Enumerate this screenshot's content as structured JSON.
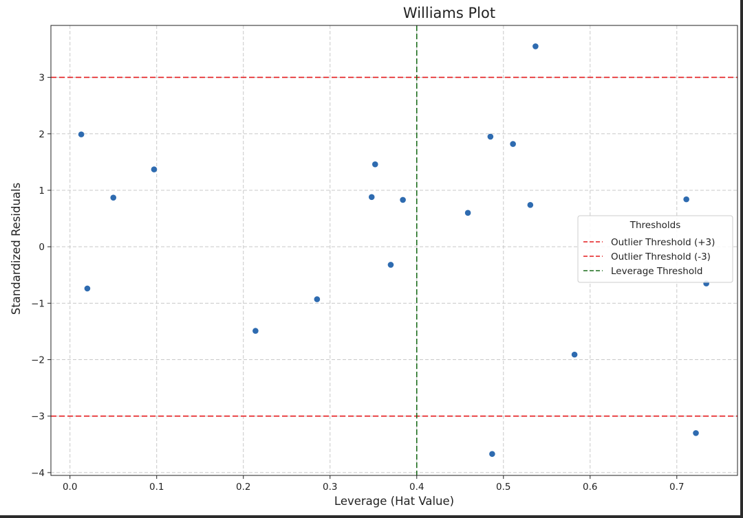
{
  "chart_data": {
    "type": "scatter",
    "title": "Williams Plot",
    "xlabel": "Leverage (Hat Value)",
    "ylabel": "Standardized Residuals",
    "xlim": [
      -0.022,
      0.77
    ],
    "ylim": [
      -4.05,
      3.92
    ],
    "xticks": [
      0.0,
      0.1,
      0.2,
      0.3,
      0.4,
      0.5,
      0.6,
      0.7
    ],
    "xtick_labels": [
      "0.0",
      "0.1",
      "0.2",
      "0.3",
      "0.4",
      "0.5",
      "0.6",
      "0.7"
    ],
    "yticks": [
      -4,
      -3,
      -2,
      -1,
      0,
      1,
      2,
      3
    ],
    "ytick_labels": [
      "−4",
      "−3",
      "−2",
      "−1",
      "0",
      "1",
      "2",
      "3"
    ],
    "grid": true,
    "point_color": "#2e6bb0",
    "points": [
      {
        "x": 0.013,
        "y": 1.99
      },
      {
        "x": 0.02,
        "y": -0.74
      },
      {
        "x": 0.05,
        "y": 0.87
      },
      {
        "x": 0.097,
        "y": 1.37
      },
      {
        "x": 0.214,
        "y": -1.49
      },
      {
        "x": 0.285,
        "y": -0.93
      },
      {
        "x": 0.348,
        "y": 0.88
      },
      {
        "x": 0.352,
        "y": 1.46
      },
      {
        "x": 0.37,
        "y": -0.32
      },
      {
        "x": 0.384,
        "y": 0.83
      },
      {
        "x": 0.459,
        "y": 0.6
      },
      {
        "x": 0.485,
        "y": 1.95
      },
      {
        "x": 0.487,
        "y": -3.67
      },
      {
        "x": 0.511,
        "y": 1.82
      },
      {
        "x": 0.531,
        "y": 0.74
      },
      {
        "x": 0.537,
        "y": 3.55
      },
      {
        "x": 0.582,
        "y": -1.91
      },
      {
        "x": 0.711,
        "y": 0.84
      },
      {
        "x": 0.722,
        "y": -3.3
      },
      {
        "x": 0.734,
        "y": -0.65
      }
    ],
    "thresholds": [
      {
        "label": "Outlier Threshold (+3)",
        "orientation": "horizontal",
        "value": 3,
        "color": "#e41a1c"
      },
      {
        "label": "Outlier Threshold (-3)",
        "orientation": "horizontal",
        "value": -3,
        "color": "#e41a1c"
      },
      {
        "label": "Leverage Threshold",
        "orientation": "vertical",
        "value": 0.4,
        "color": "#1a6b1a"
      }
    ],
    "legend": {
      "title": "Thresholds",
      "placement": "center-right",
      "entries": [
        "Outlier Threshold (+3)",
        "Outlier Threshold (-3)",
        "Leverage Threshold"
      ]
    }
  }
}
